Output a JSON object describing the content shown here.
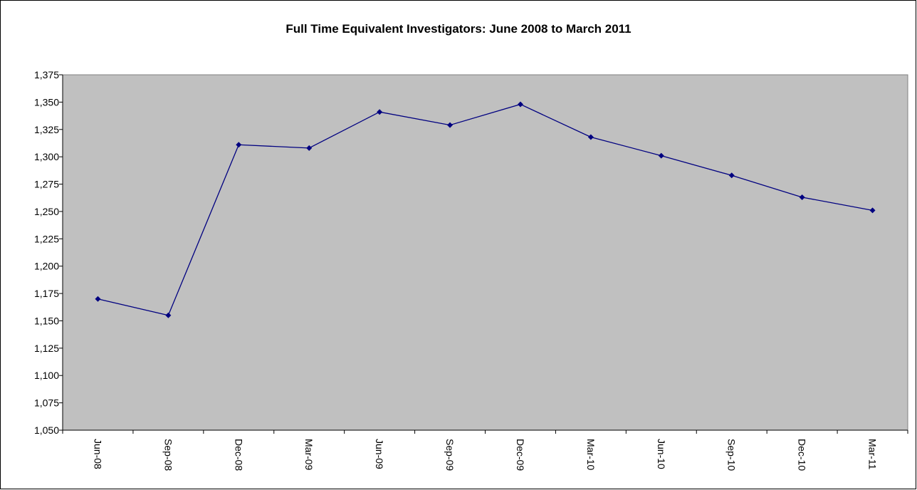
{
  "chart_data": {
    "type": "line",
    "title": "Full Time Equivalent Investigators: June 2008 to March 2011",
    "categories": [
      "Jun-08",
      "Sep-08",
      "Dec-08",
      "Mar-09",
      "Jun-09",
      "Sep-09",
      "Dec-09",
      "Mar-10",
      "Jun-10",
      "Sep-10",
      "Dec-10",
      "Mar-11"
    ],
    "series": [
      {
        "name": "Full Time Equivalent Investigators",
        "color": "#000080",
        "values": [
          1170,
          1155,
          1311,
          1308,
          1341,
          1329,
          1348,
          1318,
          1301,
          1283,
          1263,
          1251
        ]
      }
    ],
    "ylim": [
      1050,
      1375
    ],
    "yticks": [
      {
        "value": 1050,
        "label": "1,050"
      },
      {
        "value": 1075,
        "label": "1,075"
      },
      {
        "value": 1100,
        "label": "1,100"
      },
      {
        "value": 1125,
        "label": "1,125"
      },
      {
        "value": 1150,
        "label": "1,150"
      },
      {
        "value": 1175,
        "label": "1,175"
      },
      {
        "value": 1200,
        "label": "1,200"
      },
      {
        "value": 1225,
        "label": "1,225"
      },
      {
        "value": 1250,
        "label": "1,250"
      },
      {
        "value": 1275,
        "label": "1,275"
      },
      {
        "value": 1300,
        "label": "1,300"
      },
      {
        "value": 1325,
        "label": "1,325"
      },
      {
        "value": 1350,
        "label": "1,350"
      },
      {
        "value": 1375,
        "label": "1,375"
      }
    ],
    "grid": false,
    "plot_background": "#c0c0c0"
  }
}
